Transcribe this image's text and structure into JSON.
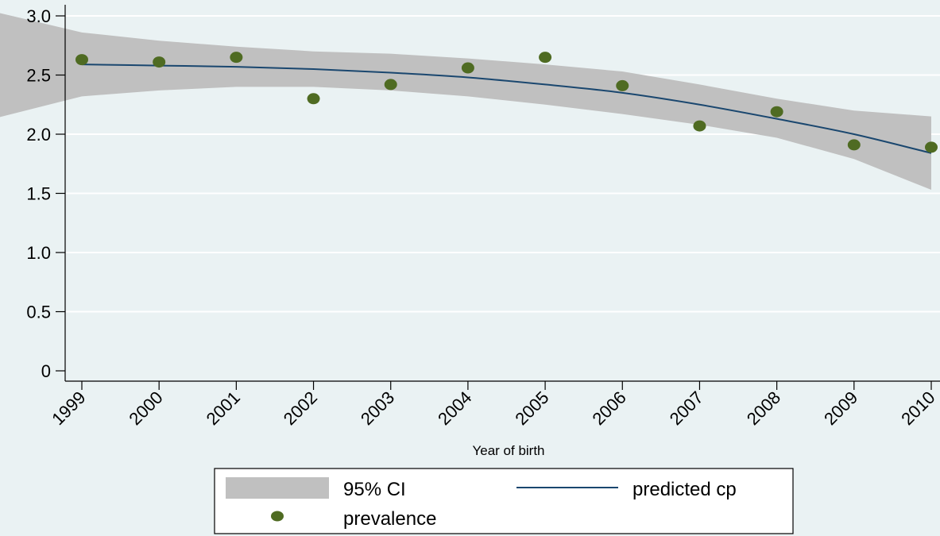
{
  "chart_data": {
    "type": "line",
    "title": "",
    "xlabel": "Year of birth",
    "ylabel": "",
    "x": [
      1999,
      2000,
      2001,
      2002,
      2003,
      2004,
      2005,
      2006,
      2007,
      2008,
      2009,
      2010
    ],
    "xtick_labels": [
      "1999",
      "2000",
      "2001",
      "2002",
      "2003",
      "2004",
      "2005",
      "2006",
      "2007",
      "2008",
      "2009",
      "2010"
    ],
    "ylim": [
      0,
      3.0
    ],
    "yticks": [
      0,
      0.5,
      1.0,
      1.5,
      2.0,
      2.5,
      3.0
    ],
    "ytick_labels": [
      "0",
      "0.5",
      "1.0",
      "1.5",
      "2.0",
      "2.5",
      "3.0"
    ],
    "grid": true,
    "series": [
      {
        "name": "prevalence",
        "kind": "scatter",
        "color": "#4f6b22",
        "values": [
          2.63,
          2.61,
          2.65,
          2.3,
          2.42,
          2.56,
          2.65,
          2.41,
          2.07,
          2.19,
          1.91,
          1.89
        ]
      },
      {
        "name": "predicted cp",
        "kind": "line",
        "color": "#1a476f",
        "values": [
          2.59,
          2.58,
          2.57,
          2.55,
          2.52,
          2.48,
          2.42,
          2.35,
          2.25,
          2.13,
          2.0,
          1.84
        ]
      },
      {
        "name": "95% CI",
        "kind": "band",
        "color": "#c0c0c0",
        "lower": [
          2.32,
          2.37,
          2.4,
          2.4,
          2.37,
          2.32,
          2.25,
          2.17,
          2.08,
          1.97,
          1.79,
          1.53
        ],
        "upper": [
          2.86,
          2.79,
          2.74,
          2.7,
          2.68,
          2.64,
          2.59,
          2.53,
          2.42,
          2.3,
          2.2,
          2.15
        ]
      }
    ],
    "legend": {
      "position": "bottom",
      "entries": [
        {
          "label": "95% CI",
          "kind": "band"
        },
        {
          "label": "predicted cp",
          "kind": "line"
        },
        {
          "label": "prevalence",
          "kind": "scatter"
        }
      ]
    }
  }
}
